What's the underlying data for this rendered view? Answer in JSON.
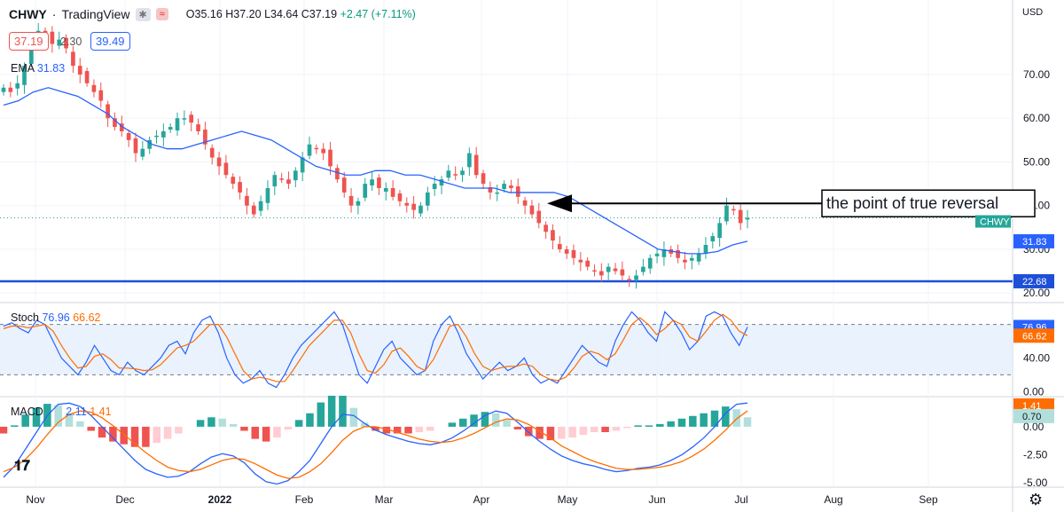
{
  "header": {
    "symbol": "CHWY",
    "separator": "·",
    "source": "TradingView",
    "open": "O35.16",
    "high": "H37.20",
    "low": "L34.64",
    "close": "C37.19",
    "change": "+2.47 (+7.11%)",
    "price_red": "37.19",
    "price_mid": "2.30",
    "price_blue": "39.49",
    "currency": "USD"
  },
  "indicators": {
    "ema_label": "EMA",
    "ema_value": "31.83",
    "stoch_label": "Stoch",
    "stoch_k": "76.96",
    "stoch_d": "66.62",
    "macd_label": "MACD",
    "macd_value": "2.11",
    "signal_value": "1.41"
  },
  "annotation": "the point of true reversal",
  "colors": {
    "up": "#26a69a",
    "down": "#ef5350",
    "ema": "#2962ff",
    "signal": "#ff6d00",
    "support": "#1e4fd9"
  },
  "chart_data": [
    {
      "type": "candlestick",
      "title": "CHWY",
      "x_ticks": [
        "Nov",
        "Dec",
        "2022",
        "Feb",
        "Mar",
        "Apr",
        "May",
        "Jun",
        "Jul",
        "Aug",
        "Sep"
      ],
      "y_ticks": [
        20.0,
        30.0,
        40.0,
        50.0,
        60.0,
        70.0
      ],
      "ylim": [
        18,
        83
      ],
      "last_close": 37.19,
      "ema_last": 31.83,
      "support_level": 22.68,
      "closes": [
        67,
        66,
        68,
        72,
        78,
        80,
        79,
        77,
        78,
        76,
        72,
        70,
        68,
        66,
        64,
        60,
        58,
        57,
        55,
        52,
        53,
        55,
        56,
        57,
        58,
        60,
        60,
        59,
        57,
        54,
        51,
        49,
        47,
        45,
        43,
        40,
        38,
        41,
        44,
        47,
        46,
        45,
        48,
        51,
        54,
        53,
        52,
        49,
        46,
        43,
        40,
        41,
        45,
        46,
        44,
        44,
        42,
        41,
        40,
        39,
        40,
        43,
        45,
        46,
        48,
        47,
        48,
        52,
        47,
        45,
        43,
        43,
        45,
        44,
        42,
        40,
        38,
        36,
        34,
        32,
        30,
        29,
        28,
        27,
        26,
        25,
        24,
        26,
        25,
        24,
        23,
        24,
        26,
        28,
        29,
        30,
        29,
        28,
        27,
        28,
        29,
        31,
        33,
        36,
        40,
        39,
        36,
        37.19
      ],
      "ema": [
        63,
        64,
        66,
        67,
        66,
        65,
        63,
        61,
        58,
        56,
        54,
        53,
        53,
        54,
        55,
        56,
        57,
        56,
        55,
        53,
        51,
        49,
        48,
        47,
        47,
        48,
        48,
        47,
        47,
        46,
        45,
        44,
        44,
        44,
        43,
        43,
        43,
        43,
        42,
        40,
        38,
        36,
        34,
        32,
        30,
        29.5,
        29,
        29,
        29.5,
        31,
        31.83
      ],
      "ema_first_index": 0,
      "ema_last_index": 107
    },
    {
      "type": "line",
      "title": "Stoch",
      "y_ticks": [
        0.0,
        40.0
      ],
      "ylim": [
        -5,
        105
      ],
      "bands": [
        20,
        80
      ],
      "series": [
        {
          "name": "%K",
          "values": [
            78,
            82,
            75,
            70,
            85,
            80,
            60,
            40,
            30,
            20,
            35,
            55,
            40,
            25,
            20,
            35,
            25,
            20,
            30,
            40,
            55,
            60,
            45,
            70,
            85,
            90,
            70,
            40,
            20,
            10,
            15,
            25,
            10,
            5,
            20,
            40,
            55,
            65,
            75,
            85,
            95,
            80,
            50,
            20,
            10,
            30,
            50,
            60,
            40,
            30,
            20,
            25,
            60,
            80,
            90,
            70,
            45,
            30,
            15,
            25,
            35,
            25,
            30,
            40,
            20,
            10,
            15,
            10,
            25,
            40,
            55,
            45,
            35,
            30,
            60,
            80,
            95,
            85,
            70,
            60,
            95,
            85,
            70,
            50,
            60,
            90,
            95,
            90,
            70,
            55,
            76.96
          ]
        },
        {
          "name": "%D",
          "values": [
            75,
            78,
            78,
            76,
            78,
            80,
            72,
            55,
            40,
            28,
            30,
            42,
            45,
            38,
            28,
            28,
            27,
            25,
            26,
            32,
            42,
            52,
            55,
            60,
            70,
            80,
            80,
            65,
            45,
            25,
            15,
            17,
            15,
            12,
            12,
            25,
            40,
            55,
            65,
            75,
            85,
            85,
            70,
            45,
            25,
            22,
            32,
            48,
            52,
            42,
            30,
            25,
            38,
            58,
            78,
            80,
            65,
            45,
            30,
            25,
            28,
            30,
            30,
            33,
            30,
            20,
            15,
            13,
            17,
            28,
            42,
            48,
            45,
            38,
            45,
            62,
            80,
            88,
            80,
            68,
            75,
            85,
            80,
            65,
            60,
            72,
            85,
            92,
            85,
            72,
            66.62
          ]
        }
      ]
    },
    {
      "type": "line",
      "title": "MACD",
      "y_ticks": [
        0.0,
        -2.5,
        -5.0
      ],
      "ylim": [
        -5.3,
        2.6
      ],
      "series": [
        {
          "name": "MACD",
          "values": [
            -4.5,
            -3.5,
            -2.0,
            -0.5,
            1.0,
            2.0,
            2.1,
            1.8,
            1.0,
            0.0,
            -1.0,
            -2.0,
            -3.0,
            -3.8,
            -4.2,
            -4.5,
            -4.4,
            -4.0,
            -3.3,
            -2.7,
            -2.4,
            -2.6,
            -3.2,
            -4.2,
            -4.9,
            -5.1,
            -4.8,
            -4.0,
            -3.0,
            -1.5,
            0.0,
            1.1,
            1.0,
            0.3,
            -0.3,
            -0.7,
            -1.0,
            -1.3,
            -1.5,
            -1.6,
            -1.4,
            -1.0,
            -0.4,
            0.3,
            1.0,
            1.4,
            1.2,
            0.4,
            -0.5,
            -1.3,
            -2.0,
            -2.6,
            -3.0,
            -3.3,
            -3.5,
            -3.8,
            -4.0,
            -3.9,
            -3.7,
            -3.6,
            -3.4,
            -3.0,
            -2.5,
            -1.8,
            -1.0,
            0.0,
            1.2,
            2.0,
            2.11
          ]
        },
        {
          "name": "Signal",
          "values": [
            -4.0,
            -3.6,
            -2.9,
            -1.9,
            -0.7,
            0.4,
            1.1,
            1.4,
            1.3,
            0.8,
            0.1,
            -0.7,
            -1.5,
            -2.3,
            -3.0,
            -3.6,
            -3.9,
            -4.0,
            -3.8,
            -3.4,
            -3.0,
            -2.8,
            -2.9,
            -3.3,
            -3.8,
            -4.3,
            -4.6,
            -4.5,
            -4.0,
            -3.3,
            -2.3,
            -1.2,
            -0.4,
            0.0,
            0.0,
            -0.2,
            -0.5,
            -0.8,
            -1.1,
            -1.3,
            -1.4,
            -1.3,
            -1.0,
            -0.6,
            -0.1,
            0.4,
            0.7,
            0.6,
            0.2,
            -0.4,
            -1.0,
            -1.7,
            -2.2,
            -2.7,
            -3.1,
            -3.4,
            -3.7,
            -3.8,
            -3.8,
            -3.7,
            -3.6,
            -3.4,
            -3.1,
            -2.6,
            -2.0,
            -1.2,
            -0.3,
            0.7,
            1.41
          ]
        }
      ]
    }
  ],
  "axis_labels": {
    "price": [
      "70.00",
      "60.00",
      "50.00",
      "40.00",
      "30.00",
      "20.00"
    ],
    "stoch": [
      "40.00",
      "0.00"
    ],
    "macd": [
      "0.00",
      "-2.50",
      "-5.00"
    ],
    "months": [
      "Nov",
      "Dec",
      "2022",
      "Feb",
      "Mar",
      "Apr",
      "May",
      "Jun",
      "Jul",
      "Aug",
      "Sep"
    ],
    "tag_last": "CHWY",
    "tag_ema": "31.83",
    "tag_support": "22.68",
    "tag_stoch_k": "76.96",
    "tag_stoch_d": "66.62",
    "tag_macd": "1.41",
    "tag_macd2": "0.70"
  }
}
